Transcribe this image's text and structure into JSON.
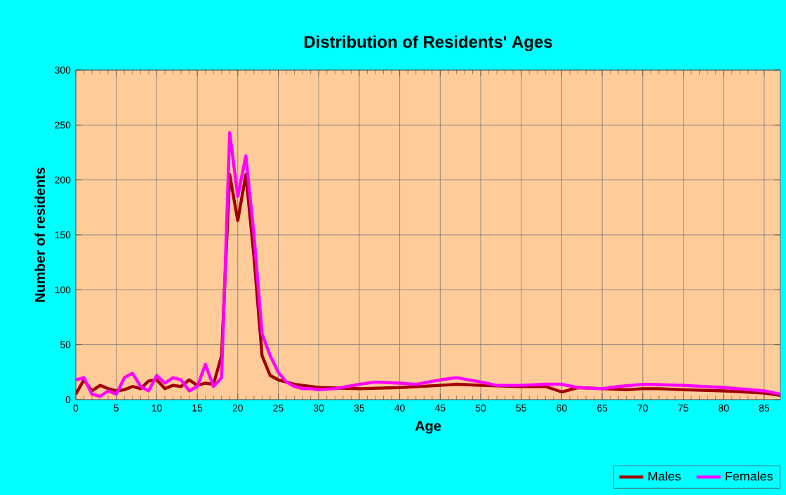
{
  "chart_data": {
    "type": "line",
    "title": "Distribution of Residents' Ages",
    "xlabel": "Age",
    "ylabel": "Number of residents",
    "xlim": [
      0,
      87
    ],
    "xticks": [
      0,
      5,
      10,
      15,
      20,
      25,
      30,
      35,
      40,
      45,
      50,
      55,
      60,
      65,
      70,
      75,
      80,
      85
    ],
    "ylim": [
      0,
      300
    ],
    "yticks": [
      0,
      50,
      100,
      150,
      200,
      250,
      300
    ],
    "grid": true,
    "legend": "bottom right",
    "series": [
      {
        "name": "Males",
        "color": "#a00000",
        "x": [
          0,
          1,
          2,
          3,
          4,
          5,
          6,
          7,
          8,
          9,
          10,
          11,
          12,
          13,
          14,
          15,
          16,
          17,
          18,
          19,
          20,
          21,
          22,
          23,
          24,
          25,
          26,
          27,
          28,
          29,
          30,
          35,
          40,
          45,
          47,
          50,
          55,
          58,
          60,
          62,
          65,
          68,
          70,
          72,
          75,
          80,
          85,
          87
        ],
        "values": [
          5,
          18,
          8,
          13,
          10,
          8,
          9,
          12,
          10,
          17,
          18,
          10,
          13,
          12,
          18,
          13,
          15,
          14,
          40,
          205,
          163,
          205,
          130,
          40,
          22,
          18,
          16,
          14,
          13,
          12,
          11,
          10,
          11,
          13,
          14,
          13,
          12,
          12,
          7,
          11,
          10,
          9,
          10,
          10,
          9,
          8,
          6,
          4
        ]
      },
      {
        "name": "Females",
        "color": "#ff00ff",
        "x": [
          0,
          1,
          2,
          3,
          4,
          5,
          6,
          7,
          8,
          9,
          10,
          11,
          12,
          13,
          14,
          15,
          16,
          17,
          18,
          19,
          20,
          21,
          22,
          23,
          24,
          25,
          26,
          27,
          28,
          29,
          30,
          32,
          35,
          37,
          40,
          42,
          45,
          47,
          50,
          52,
          55,
          58,
          60,
          62,
          65,
          67,
          70,
          75,
          80,
          85,
          87
        ],
        "values": [
          18,
          20,
          5,
          3,
          8,
          5,
          20,
          24,
          12,
          8,
          22,
          15,
          20,
          18,
          8,
          12,
          32,
          12,
          20,
          243,
          185,
          222,
          150,
          60,
          40,
          25,
          16,
          12,
          10,
          10,
          9,
          10,
          14,
          16,
          15,
          14,
          18,
          20,
          16,
          13,
          13,
          14,
          14,
          11,
          10,
          12,
          14,
          13,
          11,
          8,
          5
        ]
      }
    ]
  }
}
